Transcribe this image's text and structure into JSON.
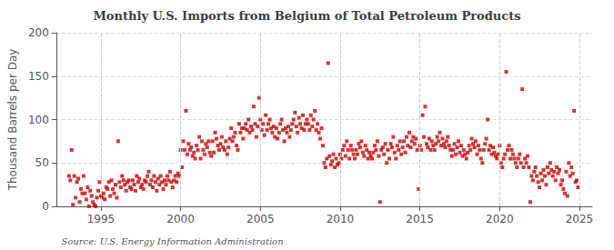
{
  "chart_data": {
    "type": "scatter",
    "title": "Monthly U.S. Imports from Belgium of Total Petroleum Products",
    "ylabel": "Thousand Barrels per Day",
    "annotation": "Source: U.S. Energy Information Administration",
    "color": "#cc0000",
    "marker": "square",
    "grid": true,
    "xlim": [
      1992.2,
      2025.8
    ],
    "xticks": [
      1995,
      2000,
      2005,
      2010,
      2015,
      2020,
      2025
    ],
    "ylim": [
      0,
      200
    ],
    "yticks": [
      0,
      50,
      100,
      150,
      200
    ],
    "x": [
      1993.0,
      1993.083,
      1993.167,
      1993.25,
      1993.333,
      1993.417,
      1993.5,
      1993.583,
      1993.667,
      1993.75,
      1993.833,
      1993.917,
      1994.0,
      1994.083,
      1994.167,
      1994.25,
      1994.333,
      1994.417,
      1994.5,
      1994.583,
      1994.667,
      1994.75,
      1994.833,
      1994.917,
      1995.0,
      1995.083,
      1995.167,
      1995.25,
      1995.333,
      1995.417,
      1995.5,
      1995.583,
      1995.667,
      1995.75,
      1995.833,
      1995.917,
      1996.0,
      1996.083,
      1996.167,
      1996.25,
      1996.333,
      1996.417,
      1996.5,
      1996.583,
      1996.667,
      1996.75,
      1996.833,
      1996.917,
      1997.0,
      1997.083,
      1997.167,
      1997.25,
      1997.333,
      1997.417,
      1997.5,
      1997.583,
      1997.667,
      1997.75,
      1997.833,
      1997.917,
      1998.0,
      1998.083,
      1998.167,
      1998.25,
      1998.333,
      1998.417,
      1998.5,
      1998.583,
      1998.667,
      1998.75,
      1998.833,
      1998.917,
      1999.0,
      1999.083,
      1999.167,
      1999.25,
      1999.333,
      1999.417,
      1999.5,
      1999.583,
      1999.667,
      1999.75,
      1999.833,
      1999.917,
      2000.0,
      2000.083,
      2000.167,
      2000.25,
      2000.333,
      2000.417,
      2000.5,
      2000.583,
      2000.667,
      2000.75,
      2000.833,
      2000.917,
      2001.0,
      2001.083,
      2001.167,
      2001.25,
      2001.333,
      2001.417,
      2001.5,
      2001.583,
      2001.667,
      2001.75,
      2001.833,
      2001.917,
      2002.0,
      2002.083,
      2002.167,
      2002.25,
      2002.333,
      2002.417,
      2002.5,
      2002.583,
      2002.667,
      2002.75,
      2002.833,
      2002.917,
      2003.0,
      2003.083,
      2003.167,
      2003.25,
      2003.333,
      2003.417,
      2003.5,
      2003.583,
      2003.667,
      2003.75,
      2003.833,
      2003.917,
      2004.0,
      2004.083,
      2004.167,
      2004.25,
      2004.333,
      2004.417,
      2004.5,
      2004.583,
      2004.667,
      2004.75,
      2004.833,
      2004.917,
      2005.0,
      2005.083,
      2005.167,
      2005.25,
      2005.333,
      2005.417,
      2005.5,
      2005.583,
      2005.667,
      2005.75,
      2005.833,
      2005.917,
      2006.0,
      2006.083,
      2006.167,
      2006.25,
      2006.333,
      2006.417,
      2006.5,
      2006.583,
      2006.667,
      2006.75,
      2006.833,
      2006.917,
      2007.0,
      2007.083,
      2007.167,
      2007.25,
      2007.333,
      2007.417,
      2007.5,
      2007.583,
      2007.667,
      2007.75,
      2007.833,
      2007.917,
      2008.0,
      2008.083,
      2008.167,
      2008.25,
      2008.333,
      2008.417,
      2008.5,
      2008.583,
      2008.667,
      2008.75,
      2008.833,
      2008.917,
      2009.0,
      2009.083,
      2009.167,
      2009.25,
      2009.333,
      2009.417,
      2009.5,
      2009.583,
      2009.667,
      2009.75,
      2009.833,
      2009.917,
      2010.0,
      2010.083,
      2010.167,
      2010.25,
      2010.333,
      2010.417,
      2010.5,
      2010.583,
      2010.667,
      2010.75,
      2010.833,
      2010.917,
      2011.0,
      2011.083,
      2011.167,
      2011.25,
      2011.333,
      2011.417,
      2011.5,
      2011.583,
      2011.667,
      2011.75,
      2011.833,
      2011.917,
      2012.0,
      2012.083,
      2012.167,
      2012.25,
      2012.333,
      2012.417,
      2012.5,
      2012.583,
      2012.667,
      2012.75,
      2012.833,
      2012.917,
      2013.0,
      2013.083,
      2013.167,
      2013.25,
      2013.333,
      2013.417,
      2013.5,
      2013.583,
      2013.667,
      2013.75,
      2013.833,
      2013.917,
      2014.0,
      2014.083,
      2014.167,
      2014.25,
      2014.333,
      2014.417,
      2014.5,
      2014.583,
      2014.667,
      2014.75,
      2014.833,
      2014.917,
      2015.0,
      2015.083,
      2015.167,
      2015.25,
      2015.333,
      2015.417,
      2015.5,
      2015.583,
      2015.667,
      2015.75,
      2015.833,
      2015.917,
      2016.0,
      2016.083,
      2016.167,
      2016.25,
      2016.333,
      2016.417,
      2016.5,
      2016.583,
      2016.667,
      2016.75,
      2016.833,
      2016.917,
      2017.0,
      2017.083,
      2017.167,
      2017.25,
      2017.333,
      2017.417,
      2017.5,
      2017.583,
      2017.667,
      2017.75,
      2017.833,
      2017.917,
      2018.0,
      2018.083,
      2018.167,
      2018.25,
      2018.333,
      2018.417,
      2018.5,
      2018.583,
      2018.667,
      2018.75,
      2018.833,
      2018.917,
      2019.0,
      2019.083,
      2019.167,
      2019.25,
      2019.333,
      2019.417,
      2019.5,
      2019.583,
      2019.667,
      2019.75,
      2019.833,
      2019.917,
      2020.0,
      2020.083,
      2020.167,
      2020.25,
      2020.333,
      2020.417,
      2020.5,
      2020.583,
      2020.667,
      2020.75,
      2020.833,
      2020.917,
      2021.0,
      2021.083,
      2021.167,
      2021.25,
      2021.333,
      2021.417,
      2021.5,
      2021.583,
      2021.667,
      2021.75,
      2021.833,
      2021.917,
      2022.0,
      2022.083,
      2022.167,
      2022.25,
      2022.333,
      2022.417,
      2022.5,
      2022.583,
      2022.667,
      2022.75,
      2022.833,
      2022.917,
      2023.0,
      2023.083,
      2023.167,
      2023.25,
      2023.333,
      2023.417,
      2023.5,
      2023.583,
      2023.667,
      2023.75,
      2023.833,
      2023.917,
      2024.0,
      2024.083,
      2024.167,
      2024.25,
      2024.333,
      2024.417,
      2024.5,
      2024.583,
      2024.667,
      2024.75,
      2024.833,
      2024.917
    ],
    "values": [
      35,
      30,
      65,
      2,
      35,
      10,
      28,
      32,
      5,
      20,
      15,
      35,
      15,
      8,
      22,
      0,
      18,
      12,
      5,
      2,
      0,
      10,
      18,
      28,
      12,
      10,
      15,
      8,
      22,
      20,
      28,
      12,
      30,
      20,
      15,
      25,
      10,
      75,
      28,
      22,
      35,
      30,
      25,
      18,
      28,
      30,
      22,
      20,
      30,
      25,
      18,
      35,
      28,
      32,
      22,
      25,
      20,
      30,
      28,
      35,
      40,
      25,
      30,
      22,
      35,
      28,
      18,
      32,
      25,
      35,
      28,
      20,
      30,
      25,
      35,
      30,
      40,
      28,
      22,
      30,
      35,
      28,
      38,
      35,
      65,
      45,
      75,
      65,
      110,
      60,
      72,
      65,
      68,
      58,
      62,
      55,
      70,
      65,
      80,
      55,
      75,
      65,
      60,
      72,
      68,
      75,
      62,
      58,
      75,
      62,
      85,
      78,
      70,
      65,
      72,
      80,
      68,
      65,
      75,
      60,
      68,
      78,
      90,
      75,
      80,
      85,
      70,
      65,
      95,
      85,
      90,
      78,
      90,
      95,
      88,
      100,
      85,
      92,
      88,
      115,
      95,
      80,
      92,
      125,
      100,
      88,
      95,
      82,
      105,
      88,
      95,
      100,
      90,
      85,
      92,
      80,
      90,
      78,
      85,
      95,
      100,
      88,
      75,
      90,
      85,
      92,
      80,
      88,
      95,
      100,
      108,
      92,
      85,
      102,
      95,
      90,
      105,
      88,
      95,
      100,
      95,
      88,
      105,
      92,
      100,
      110,
      88,
      95,
      85,
      78,
      90,
      70,
      50,
      45,
      55,
      165,
      58,
      48,
      52,
      60,
      45,
      55,
      48,
      50,
      60,
      55,
      65,
      70,
      58,
      75,
      65,
      55,
      70,
      65,
      60,
      55,
      65,
      60,
      72,
      68,
      75,
      62,
      58,
      70,
      65,
      55,
      62,
      58,
      55,
      62,
      70,
      65,
      75,
      58,
      5,
      65,
      68,
      60,
      72,
      50,
      65,
      55,
      72,
      68,
      80,
      62,
      55,
      70,
      65,
      75,
      60,
      68,
      75,
      62,
      80,
      70,
      85,
      68,
      75,
      80,
      72,
      78,
      65,
      20,
      70,
      65,
      105,
      80,
      115,
      72,
      68,
      78,
      65,
      75,
      70,
      65,
      72,
      80,
      75,
      85,
      70,
      78,
      72,
      68,
      75,
      80,
      70,
      65,
      58,
      65,
      72,
      60,
      68,
      75,
      62,
      70,
      58,
      65,
      60,
      55,
      62,
      70,
      65,
      78,
      72,
      68,
      75,
      60,
      70,
      65,
      55,
      50,
      65,
      72,
      78,
      100,
      65,
      70,
      60,
      68,
      62,
      58,
      55,
      60,
      70,
      50,
      45,
      55,
      60,
      155,
      65,
      70,
      55,
      65,
      60,
      55,
      50,
      45,
      55,
      60,
      50,
      135,
      45,
      55,
      50,
      58,
      45,
      5,
      35,
      30,
      40,
      45,
      35,
      28,
      22,
      38,
      30,
      42,
      35,
      25,
      45,
      38,
      50,
      42,
      35,
      40,
      30,
      45,
      38,
      42,
      25,
      30,
      20,
      15,
      40,
      12,
      50,
      35,
      45,
      38,
      110,
      28,
      30,
      22
    ]
  }
}
